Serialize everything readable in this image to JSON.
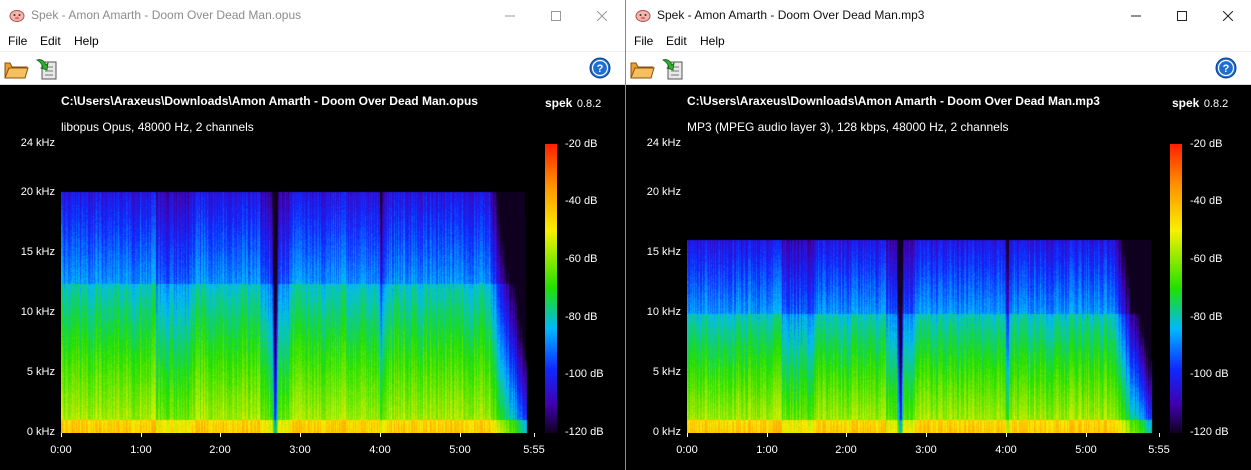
{
  "windows": [
    {
      "title": "Spek - Amon Amarth - Doom Over Dead Man.opus",
      "active": false,
      "menu": [
        "File",
        "Edit",
        "Help"
      ],
      "file_path": "C:\\Users\\Araxeus\\Downloads\\Amon Amarth - Doom Over Dead Man.opus",
      "brand": "spek",
      "version": "0.8.2",
      "file_info": "libopus Opus, 48000 Hz, 2 channels",
      "freq_ticks": [
        "24 kHz",
        "20 kHz",
        "15 kHz",
        "10 kHz",
        "5 kHz",
        "0 kHz"
      ],
      "time_ticks": [
        "0:00",
        "1:00",
        "2:00",
        "3:00",
        "4:00",
        "5:00",
        "5:55"
      ],
      "db_ticks": [
        "-20 dB",
        "-40 dB",
        "-60 dB",
        "-80 dB",
        "-100 dB",
        "-120 dB"
      ],
      "spectrum": {
        "cutoff_khz": 20,
        "max_khz": 24,
        "duration_s": 355,
        "fade_start_s": 320,
        "gap_s": 160,
        "gap2_s": 240
      }
    },
    {
      "title": "Spek - Amon Amarth - Doom Over Dead Man.mp3",
      "active": true,
      "menu": [
        "File",
        "Edit",
        "Help"
      ],
      "file_path": "C:\\Users\\Araxeus\\Downloads\\Amon Amarth - Doom Over Dead Man.mp3",
      "brand": "spek",
      "version": "0.8.2",
      "file_info": "MP3 (MPEG audio layer 3), 128 kbps, 48000 Hz, 2 channels",
      "freq_ticks": [
        "24 kHz",
        "20 kHz",
        "15 kHz",
        "10 kHz",
        "5 kHz",
        "0 kHz"
      ],
      "time_ticks": [
        "0:00",
        "1:00",
        "2:00",
        "3:00",
        "4:00",
        "5:00",
        "5:55"
      ],
      "db_ticks": [
        "-20 dB",
        "-40 dB",
        "-60 dB",
        "-80 dB",
        "-100 dB",
        "-120 dB"
      ],
      "spectrum": {
        "cutoff_khz": 16,
        "max_khz": 24,
        "duration_s": 355,
        "fade_start_s": 320,
        "gap_s": 160,
        "gap2_s": 240
      }
    }
  ],
  "icons": {
    "app": "pig-icon",
    "open": "folder-open-icon",
    "save": "save-arrow-icon",
    "help": "help-icon",
    "minimize": "minimize-icon",
    "maximize": "maximize-icon",
    "close": "close-icon"
  },
  "colors": {
    "accent_blue": "#1e6fd0",
    "background": "#000000",
    "text": "#ffffff"
  }
}
